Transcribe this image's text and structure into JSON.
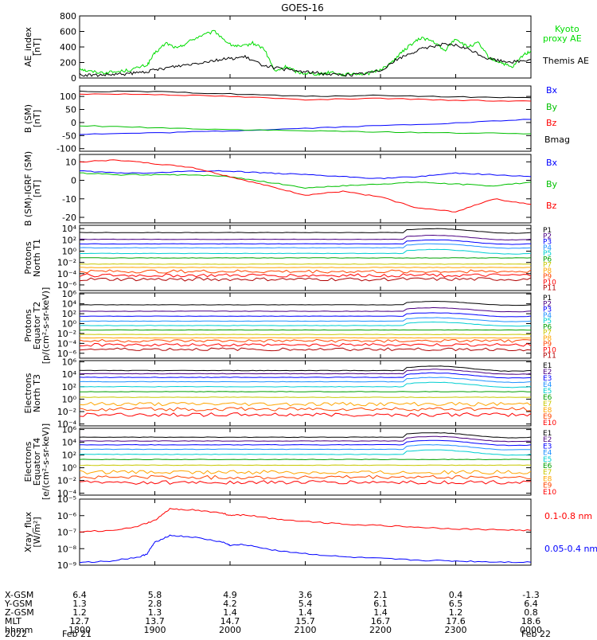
{
  "chart_data": {
    "type": "line",
    "title": "GOES-16",
    "time_axis": {
      "start_hhmm": "1800",
      "end_hhmm": "0000",
      "tick_hhmm": [
        "1800",
        "1900",
        "2000",
        "2100",
        "2200",
        "2300",
        "0000"
      ],
      "row_labels": [
        "X-GSM",
        "Y-GSM",
        "Z-GSM",
        "MLT",
        "hhmm",
        "2022"
      ],
      "rows": [
        [
          "6.4",
          "5.8",
          "4.9",
          "3.6",
          "2.1",
          "0.4",
          "-1.3"
        ],
        [
          "1.3",
          "2.8",
          "4.2",
          "5.4",
          "6.1",
          "6.5",
          "6.4"
        ],
        [
          "1.2",
          "1.3",
          "1.4",
          "1.4",
          "1.4",
          "1.2",
          "0.8"
        ],
        [
          "12.7",
          "13.7",
          "14.7",
          "15.7",
          "16.7",
          "17.6",
          "18.6"
        ],
        [
          "1800",
          "1900",
          "2000",
          "2100",
          "2200",
          "2300",
          "0000"
        ]
      ],
      "date_start": "Feb 21",
      "date_end": "Feb 22"
    },
    "panels": [
      {
        "id": "ae",
        "ylabel": [
          "AE_index",
          "[nT]"
        ],
        "ylim": [
          0,
          800
        ],
        "yscale": "linear",
        "yticks": [
          0,
          200,
          400,
          600,
          800
        ],
        "ytick_labels": [
          "0",
          "200",
          "400",
          "600",
          "800"
        ],
        "series": [
          {
            "name": "Kyoto proxy AE",
            "color": "#00dd00",
            "x": [
              0,
              0.1,
              0.3,
              0.5,
              0.7,
              0.9,
              1.0,
              1.15,
              1.3,
              1.45,
              1.6,
              1.8,
              2.0,
              2.15,
              2.3,
              2.45,
              2.6,
              2.75,
              2.9,
              3.05,
              3.2,
              3.35,
              3.5,
              3.65,
              3.8,
              3.95,
              4.1,
              4.25,
              4.4,
              4.55,
              4.7,
              4.85,
              5.0,
              5.15,
              5.3,
              5.45,
              5.6,
              5.75,
              5.9,
              6.0
            ],
            "y": [
              130,
              90,
              70,
              80,
              110,
              170,
              320,
              450,
              380,
              470,
              540,
              600,
              430,
              400,
              450,
              380,
              80,
              150,
              70,
              60,
              50,
              80,
              40,
              60,
              50,
              90,
              160,
              300,
              430,
              520,
              470,
              350,
              510,
              400,
              450,
              250,
              200,
              130,
              300,
              350
            ]
          },
          {
            "name": "Themis AE",
            "color": "#000000",
            "x": [
              0,
              0.2,
              0.4,
              0.6,
              0.8,
              1.0,
              1.2,
              1.4,
              1.6,
              1.8,
              2.0,
              2.2,
              2.4,
              2.6,
              2.8,
              3.0,
              3.2,
              3.4,
              3.6,
              3.8,
              4.0,
              4.2,
              4.4,
              4.6,
              4.8,
              5.0,
              5.2,
              5.4,
              5.6,
              5.8,
              6.0
            ],
            "y": [
              40,
              35,
              40,
              50,
              70,
              100,
              140,
              170,
              200,
              230,
              250,
              270,
              180,
              130,
              100,
              80,
              60,
              45,
              40,
              60,
              100,
              230,
              320,
              390,
              430,
              420,
              360,
              260,
              220,
              210,
              240
            ]
          }
        ],
        "legend": [
          "Kyoto proxy AE",
          "Themis AE"
        ]
      },
      {
        "id": "bsm",
        "ylabel": [
          "B (SM)",
          "[nT]"
        ],
        "ylim": [
          -110,
          140
        ],
        "yscale": "linear",
        "yticks": [
          -100,
          -50,
          0,
          50,
          100
        ],
        "ytick_labels": [
          "-100",
          "-50",
          "0",
          "50",
          "100"
        ],
        "series": [
          {
            "name": "Bx",
            "color": "#0000ff",
            "x": [
              0,
              1,
              2,
              3,
              4,
              5,
              6
            ],
            "y": [
              -45,
              -40,
              -32,
              -22,
              -12,
              -2,
              12
            ]
          },
          {
            "name": "By",
            "color": "#00c000",
            "x": [
              0,
              1,
              2,
              3,
              4,
              5,
              6
            ],
            "y": [
              -12,
              -20,
              -27,
              -32,
              -36,
              -40,
              -43
            ]
          },
          {
            "name": "Bz",
            "color": "#ff0000",
            "x": [
              0,
              1,
              2,
              3,
              4,
              5,
              6
            ],
            "y": [
              110,
              108,
              100,
              88,
              92,
              85,
              82
            ]
          },
          {
            "name": "Bmag",
            "color": "#000000",
            "x": [
              0,
              1,
              2,
              3,
              4,
              5,
              6
            ],
            "y": [
              120,
              118,
              110,
              100,
              104,
              98,
              95
            ]
          }
        ],
        "legend": [
          "Bx",
          "By",
          "Bz",
          "Bmag"
        ]
      },
      {
        "id": "digrf",
        "ylabel": [
          "B (SM)-IGRF (SM)",
          "[nT]"
        ],
        "ylim": [
          -23,
          14
        ],
        "yscale": "linear",
        "yticks": [
          -20,
          -10,
          0,
          10
        ],
        "ytick_labels": [
          "-20",
          "-10",
          "0",
          "10"
        ],
        "series": [
          {
            "name": "Bx",
            "color": "#0000ff",
            "x": [
              0,
              0.5,
              1,
              1.5,
              2,
              2.5,
              3,
              3.5,
              4,
              4.5,
              5,
              5.5,
              6
            ],
            "y": [
              5,
              4,
              4,
              5,
              5,
              4,
              3,
              2,
              1,
              2,
              4,
              3,
              2
            ]
          },
          {
            "name": "By",
            "color": "#00c000",
            "x": [
              0,
              0.5,
              1,
              1.5,
              2,
              2.5,
              3,
              3.5,
              4,
              4.5,
              5,
              5.5,
              6
            ],
            "y": [
              4,
              3,
              3,
              3,
              2,
              -1,
              -4,
              -3,
              -2,
              -1,
              -2,
              -3,
              -1
            ]
          },
          {
            "name": "Bz",
            "color": "#ff0000",
            "x": [
              0,
              0.5,
              1,
              1.5,
              2,
              2.5,
              3,
              3.5,
              4,
              4.5,
              5,
              5.5,
              6
            ],
            "y": [
              10,
              11,
              9,
              7,
              2,
              -3,
              -8,
              -6,
              -9,
              -15,
              -17,
              -10,
              -13
            ]
          }
        ],
        "legend": [
          "Bx",
          "By",
          "Bz"
        ]
      },
      {
        "id": "p_n",
        "ylabel": [
          "Protons",
          "North T1"
        ],
        "ylim": [
          -7,
          4.6
        ],
        "yscale": "log",
        "yticks": [
          -6,
          -4,
          -2,
          0,
          2,
          4
        ],
        "ytick_labels": [
          "10⁻⁶",
          "10⁻⁴",
          "10⁻²",
          "10⁰",
          "10²",
          "10⁴"
        ],
        "channel_names": [
          "P1",
          "P2",
          "P3",
          "P4",
          "P5",
          "P6",
          "P7",
          "P8",
          "P9",
          "P10",
          "P11"
        ],
        "channel_colors": [
          "#000000",
          "#4b0082",
          "#0000ff",
          "#1e90ff",
          "#00ced1",
          "#00a000",
          "#c8c800",
          "#ffa500",
          "#ff4500",
          "#ff0000",
          "#b00000"
        ],
        "series_levels": [
          3.3,
          2.1,
          1.3,
          0.6,
          -0.4,
          -1.2,
          -2.3,
          -2.9,
          -3.6,
          -4.3,
          -5.0
        ]
      },
      {
        "id": "p_e",
        "ylabel": [
          "Protons",
          "Equator T2",
          "[p/(cm²-s-sr-keV)]"
        ],
        "ylim": [
          -7,
          6.2
        ],
        "yscale": "log",
        "yticks": [
          -6,
          -4,
          -2,
          0,
          2,
          4,
          6
        ],
        "ytick_labels": [
          "10⁻⁶",
          "10⁻⁴",
          "10⁻²",
          "10⁰",
          "10²",
          "10⁴",
          "10⁶"
        ],
        "channel_names": [
          "P1",
          "P2",
          "P3",
          "P4",
          "P5",
          "P6",
          "P7",
          "P8",
          "P9",
          "P10",
          "P11"
        ],
        "channel_colors": [
          "#000000",
          "#4b0082",
          "#0000ff",
          "#1e90ff",
          "#00ced1",
          "#00a000",
          "#c8c800",
          "#ffa500",
          "#ff4500",
          "#ff0000",
          "#b00000"
        ],
        "series_levels": [
          3.8,
          2.5,
          1.5,
          0.5,
          -0.4,
          -1.3,
          -2.2,
          -2.9,
          -3.5,
          -4.3,
          -5.2
        ]
      },
      {
        "id": "e_n",
        "ylabel": [
          "Electrons",
          "North T3"
        ],
        "ylim": [
          -4.3,
          6.2
        ],
        "yscale": "log",
        "yticks": [
          -4,
          -2,
          0,
          2,
          4,
          6
        ],
        "ytick_labels": [
          "10⁻⁴",
          "10⁻²",
          "10⁰",
          "10²",
          "10⁴",
          "10⁶"
        ],
        "channel_names": [
          "E1",
          "E2",
          "E3",
          "E4",
          "E5",
          "E6",
          "E7",
          "E8",
          "E9",
          "E10"
        ],
        "channel_colors": [
          "#000000",
          "#4b0082",
          "#0000ff",
          "#1e90ff",
          "#00ced1",
          "#00a000",
          "#c8c800",
          "#ffa500",
          "#ff4500",
          "#ff0000"
        ],
        "series_levels": [
          4.6,
          4.1,
          3.5,
          2.8,
          2.0,
          1.2,
          0.3,
          -0.8,
          -1.6,
          -2.5
        ]
      },
      {
        "id": "e_e",
        "ylabel": [
          "Electrons",
          "Equator T4",
          "[e/(cm²-s-sr-keV)]"
        ],
        "ylim": [
          -4.3,
          6.2
        ],
        "yscale": "log",
        "yticks": [
          -4,
          -2,
          0,
          2,
          4,
          6
        ],
        "ytick_labels": [
          "10⁻⁴",
          "10⁻²",
          "10⁰",
          "10²",
          "10⁴",
          "10⁶"
        ],
        "channel_names": [
          "E1",
          "E2",
          "E3",
          "E4",
          "E5",
          "E6",
          "E7",
          "E8",
          "E9",
          "E10"
        ],
        "channel_colors": [
          "#000000",
          "#4b0082",
          "#0000ff",
          "#1e90ff",
          "#00ced1",
          "#00a000",
          "#c8c800",
          "#ffa500",
          "#ff4500",
          "#ff0000"
        ],
        "series_levels": [
          4.8,
          4.2,
          3.6,
          2.9,
          2.1,
          1.3,
          0.4,
          -0.7,
          -1.5,
          -2.3
        ]
      },
      {
        "id": "xray",
        "ylabel": [
          "Xray_flux",
          "[W/m²]"
        ],
        "ylim": [
          -9,
          -5
        ],
        "yscale": "log",
        "yticks": [
          -9,
          -8,
          -7,
          -6,
          -5
        ],
        "ytick_labels": [
          "10⁻⁹",
          "10⁻⁸",
          "10⁻⁷",
          "10⁻⁶",
          "10⁻⁵"
        ],
        "series": [
          {
            "name": "0.1-0.8 nm",
            "color": "#ff0000",
            "x": [
              0,
              0.5,
              0.8,
              1.0,
              1.2,
              1.5,
              1.9,
              2.0,
              2.2,
              2.6,
              3.0,
              3.5,
              4.0,
              4.5,
              5.0,
              5.5,
              6.0
            ],
            "y": [
              -6.95,
              -6.9,
              -6.6,
              -6.3,
              -5.6,
              -5.65,
              -5.85,
              -6.0,
              -5.95,
              -6.2,
              -6.35,
              -6.5,
              -6.6,
              -6.7,
              -6.8,
              -6.85,
              -6.9
            ]
          },
          {
            "name": "0.05-0.4 nm",
            "color": "#0000ff",
            "x": [
              0,
              0.4,
              0.8,
              0.9,
              1.0,
              1.2,
              1.5,
              1.9,
              2.0,
              2.2,
              2.6,
              3.0,
              3.5,
              4.0,
              4.5,
              5.0,
              5.5,
              6.0
            ],
            "y": [
              -8.85,
              -8.75,
              -8.5,
              -8.3,
              -7.6,
              -7.2,
              -7.3,
              -7.6,
              -7.8,
              -7.75,
              -8.1,
              -8.3,
              -8.5,
              -8.6,
              -8.7,
              -8.75,
              -8.8,
              -8.82
            ]
          }
        ],
        "legend": [
          "0.1-0.8 nm",
          "0.05-0.4 nm"
        ]
      }
    ]
  },
  "legend_text": {
    "ae_kyoto_1": "Kyoto",
    "ae_kyoto_2": "proxy AE",
    "ae_themis": "Themis AE",
    "b_bx": "Bx",
    "b_by": "By",
    "b_bz": "Bz",
    "b_bmag": "Bmag",
    "d_bx": "Bx",
    "d_by": "By",
    "d_bz": "Bz",
    "x_long": "0.1-0.8 nm",
    "x_short": "0.05-0.4 nm"
  }
}
